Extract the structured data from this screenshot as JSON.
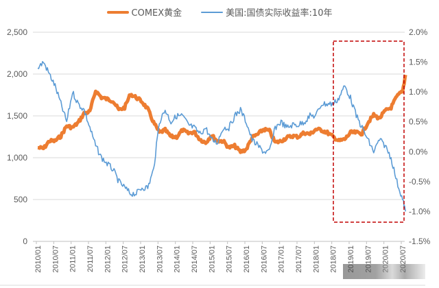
{
  "legend": {
    "gold_label": "COMEX黄金",
    "yield_label": "美国:国债实际收益率:10年"
  },
  "colors": {
    "gold": "#ED7D31",
    "yield": "#5B9BD5",
    "grid": "#D9D9D9",
    "highlight_box": "#C00000"
  },
  "chart_data": {
    "type": "line",
    "title": "",
    "xlabel": "",
    "ylabel_left": "COMEX黄金",
    "ylabel_right": "美国:国债实际收益率:10年",
    "ylim_left": [
      0,
      2500
    ],
    "ylim_right": [
      -1.5,
      2.0
    ],
    "left_ticks": [
      "0",
      "500",
      "1,000",
      "1,500",
      "2,000",
      "2,500"
    ],
    "right_ticks": [
      "-1.5%",
      "-1.0%",
      "-0.5%",
      "0.0%",
      "0.5%",
      "1.0%",
      "1.5%",
      "2.0%"
    ],
    "x_ticks": [
      "2010/01",
      "2010/07",
      "2011/01",
      "2011/07",
      "2012/01",
      "2012/07",
      "2013/01",
      "2013/07",
      "2014/01",
      "2014/07",
      "2015/01",
      "2015/07",
      "2016/01",
      "2016/07",
      "2017/01",
      "2017/07",
      "2018/01",
      "2018/07",
      "2019/01",
      "2019/07",
      "2020/01",
      "2020/07"
    ],
    "grid": true,
    "legend_position": "top",
    "annotation": "red dashed box highlighting 2018/10 – 2020/08",
    "x": [
      "2010/01",
      "2010/03",
      "2010/05",
      "2010/07",
      "2010/09",
      "2010/11",
      "2011/01",
      "2011/03",
      "2011/05",
      "2011/07",
      "2011/09",
      "2011/11",
      "2012/01",
      "2012/03",
      "2012/05",
      "2012/07",
      "2012/09",
      "2012/11",
      "2013/01",
      "2013/03",
      "2013/05",
      "2013/07",
      "2013/09",
      "2013/11",
      "2014/01",
      "2014/03",
      "2014/05",
      "2014/07",
      "2014/09",
      "2014/11",
      "2015/01",
      "2015/03",
      "2015/05",
      "2015/07",
      "2015/09",
      "2015/11",
      "2016/01",
      "2016/03",
      "2016/05",
      "2016/07",
      "2016/09",
      "2016/11",
      "2017/01",
      "2017/03",
      "2017/05",
      "2017/07",
      "2017/09",
      "2017/11",
      "2018/01",
      "2018/03",
      "2018/05",
      "2018/07",
      "2018/09",
      "2018/11",
      "2019/01",
      "2019/03",
      "2019/05",
      "2019/07",
      "2019/09",
      "2019/11",
      "2020/01",
      "2020/03",
      "2020/05",
      "2020/07",
      "2020/08"
    ],
    "series": [
      {
        "name": "COMEX黄金",
        "axis": "left",
        "values": [
          1120,
          1110,
          1200,
          1200,
          1260,
          1380,
          1360,
          1420,
          1530,
          1550,
          1800,
          1720,
          1700,
          1680,
          1570,
          1600,
          1760,
          1720,
          1670,
          1580,
          1420,
          1300,
          1330,
          1250,
          1250,
          1330,
          1290,
          1310,
          1220,
          1180,
          1270,
          1200,
          1200,
          1120,
          1140,
          1070,
          1100,
          1240,
          1280,
          1340,
          1320,
          1180,
          1200,
          1240,
          1260,
          1250,
          1300,
          1280,
          1340,
          1330,
          1300,
          1250,
          1200,
          1220,
          1300,
          1300,
          1290,
          1420,
          1510,
          1470,
          1560,
          1600,
          1730,
          1800,
          1990
        ]
      },
      {
        "name": "美国:国债实际收益率:10年",
        "axis": "right",
        "values": [
          1.4,
          1.5,
          1.3,
          1.1,
          0.8,
          0.5,
          1.0,
          0.8,
          0.7,
          0.4,
          0.1,
          -0.1,
          -0.2,
          -0.3,
          -0.5,
          -0.6,
          -0.7,
          -0.7,
          -0.6,
          -0.6,
          -0.3,
          0.5,
          0.7,
          0.5,
          0.6,
          0.6,
          0.45,
          0.4,
          0.3,
          0.4,
          0.2,
          0.15,
          0.4,
          0.4,
          0.6,
          0.7,
          0.5,
          0.2,
          0.1,
          0.0,
          0.0,
          0.4,
          0.5,
          0.4,
          0.45,
          0.45,
          0.5,
          0.6,
          0.6,
          0.8,
          0.8,
          0.8,
          0.9,
          1.1,
          0.9,
          0.6,
          0.4,
          0.2,
          0.0,
          0.2,
          0.1,
          -0.1,
          -0.5,
          -0.8,
          -1.0
        ]
      }
    ]
  },
  "watermark": "obscured logo"
}
